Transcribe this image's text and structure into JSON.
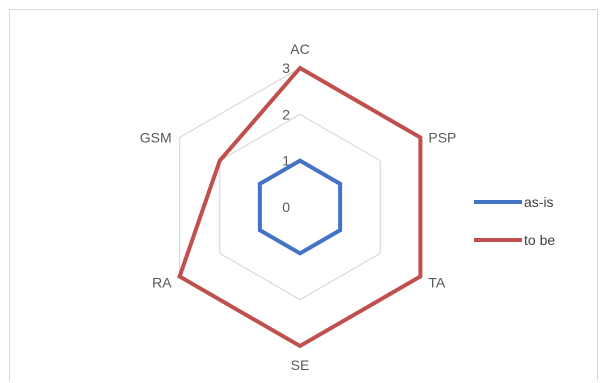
{
  "chart_data": {
    "type": "radar",
    "title": "",
    "categories": [
      "AC",
      "PSP",
      "TA",
      "SE",
      "RA",
      "GSM"
    ],
    "rlim": [
      0,
      3
    ],
    "ticks": [
      "0",
      "1",
      "2",
      "3"
    ],
    "grid": true,
    "legend_position": "right",
    "series": [
      {
        "name": "as-is",
        "values": [
          1,
          1,
          1,
          1,
          1,
          1
        ],
        "color": "#4472c4"
      },
      {
        "name": "to be",
        "values": [
          3,
          3,
          3,
          3,
          3,
          2
        ],
        "color": "#c0504d"
      }
    ],
    "grid_color": "#d9d9d9",
    "text_color": "#595959"
  }
}
